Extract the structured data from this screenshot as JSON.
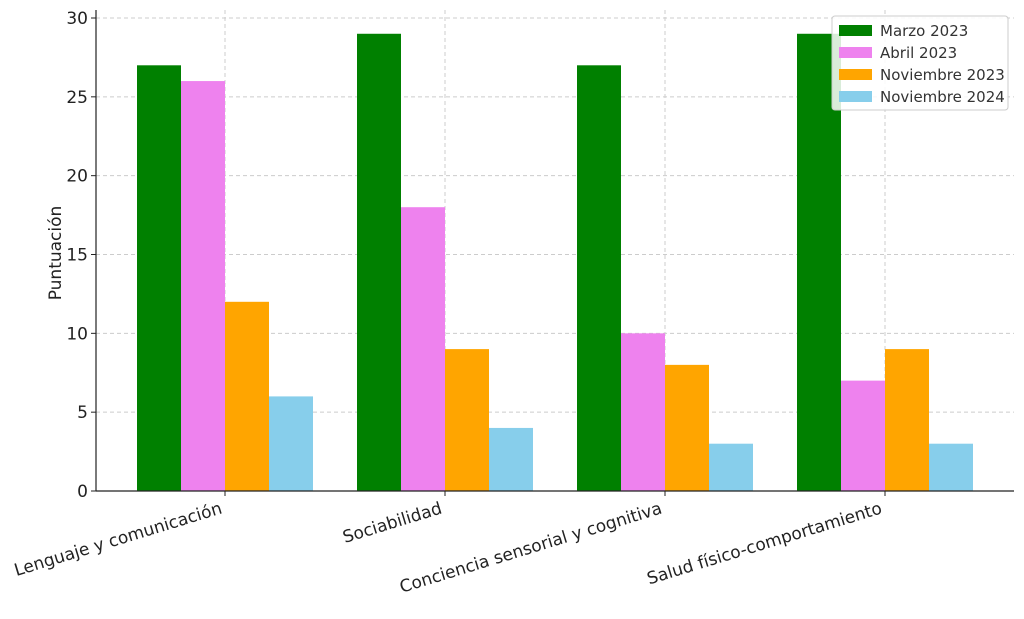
{
  "chart_data": {
    "type": "bar",
    "title": "",
    "xlabel": "",
    "ylabel": "Puntuación",
    "ylim": [
      0,
      30
    ],
    "yticks": [
      0,
      5,
      10,
      15,
      20,
      25,
      30
    ],
    "grid": true,
    "legend_position": "top-right",
    "categories": [
      "Lenguaje y comunicación",
      "Sociabilidad",
      "Conciencia sensorial y cognitiva",
      "Salud físico-comportamiento"
    ],
    "series": [
      {
        "name": "Marzo 2023",
        "color": "#008000",
        "values": [
          27,
          29,
          27,
          29
        ]
      },
      {
        "name": "Abril 2023",
        "color": "#ee82ee",
        "values": [
          26,
          18,
          10,
          7
        ]
      },
      {
        "name": "Noviembre 2023",
        "color": "#ffa500",
        "values": [
          12,
          9,
          8,
          9
        ]
      },
      {
        "name": "Noviembre 2024",
        "color": "#87ceeb",
        "values": [
          6,
          4,
          3,
          3
        ]
      }
    ]
  }
}
